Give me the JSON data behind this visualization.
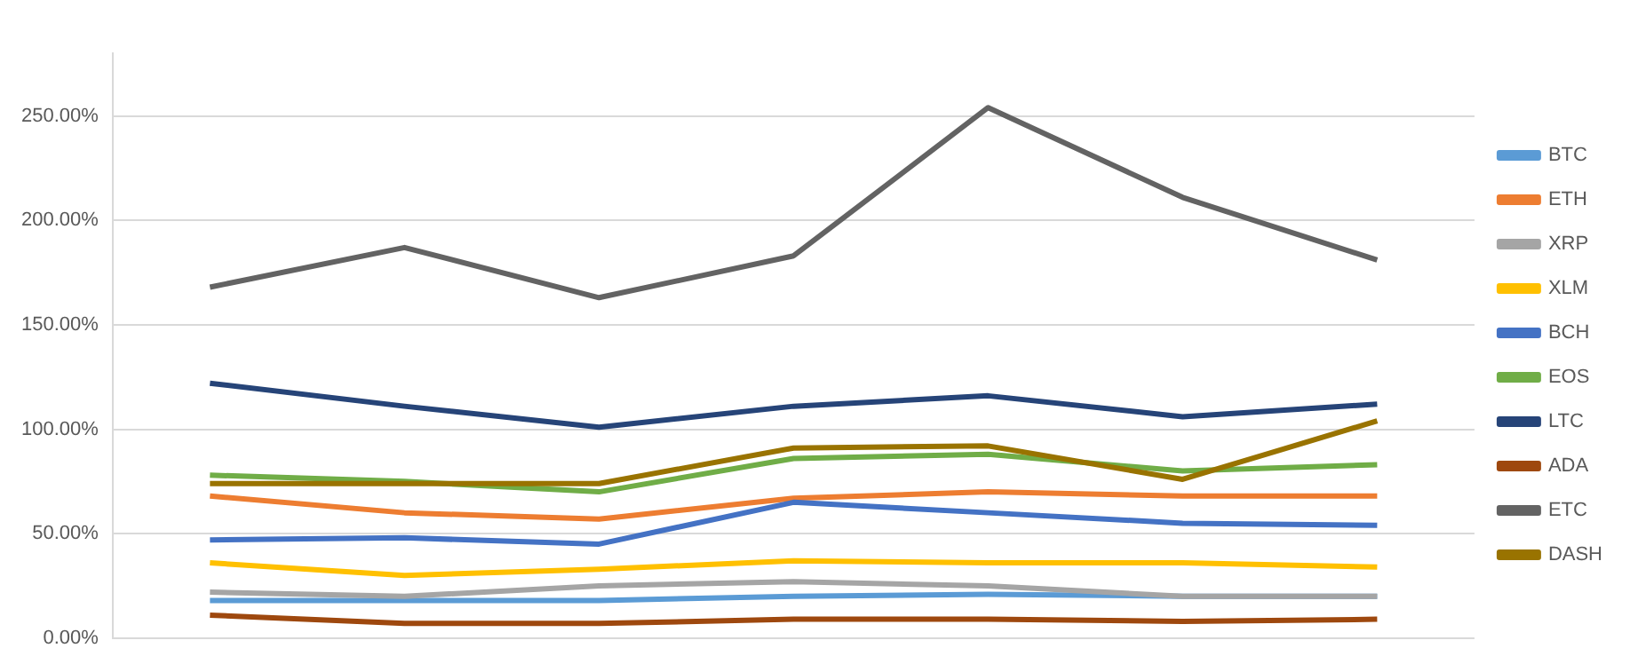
{
  "chart_data": {
    "type": "line",
    "categories": [
      null,
      null,
      null,
      null,
      null,
      null,
      null
    ],
    "ylim": [
      0,
      280
    ],
    "yticks": [
      {
        "value": 0,
        "label": "0.00%"
      },
      {
        "value": 50,
        "label": "50.00%"
      },
      {
        "value": 100,
        "label": "100.00%"
      },
      {
        "value": 150,
        "label": "150.00%"
      },
      {
        "value": 200,
        "label": "200.00%"
      },
      {
        "value": 250,
        "label": "250.00%"
      }
    ],
    "grid": "y",
    "legend": "right",
    "marker": "none",
    "line_style": "solid",
    "tick_labels": "y",
    "series": [
      {
        "name": "BTC",
        "color": "#5b9bd5",
        "values": [
          18,
          18,
          18,
          20,
          21,
          20,
          20
        ]
      },
      {
        "name": "ETH",
        "color": "#ed7d31",
        "values": [
          68,
          60,
          57,
          67,
          70,
          68,
          68
        ]
      },
      {
        "name": "XRP",
        "color": "#a5a5a5",
        "values": [
          22,
          20,
          25,
          27,
          25,
          20,
          20
        ]
      },
      {
        "name": "XLM",
        "color": "#ffc000",
        "values": [
          36,
          30,
          33,
          37,
          36,
          36,
          34
        ]
      },
      {
        "name": "BCH",
        "color": "#4472c4",
        "values": [
          47,
          48,
          45,
          65,
          60,
          55,
          54
        ]
      },
      {
        "name": "EOS",
        "color": "#70ad47",
        "values": [
          78,
          75,
          70,
          86,
          88,
          80,
          83
        ]
      },
      {
        "name": "LTC",
        "color": "#264478",
        "values": [
          122,
          111,
          101,
          111,
          116,
          106,
          112
        ]
      },
      {
        "name": "ADA",
        "color": "#9e480e",
        "values": [
          11,
          7,
          7,
          9,
          9,
          8,
          9
        ]
      },
      {
        "name": "ETC",
        "color": "#636363",
        "values": [
          168,
          187,
          163,
          183,
          254,
          211,
          181
        ]
      },
      {
        "name": "DASH",
        "color": "#997300",
        "values": [
          74,
          74,
          74,
          91,
          92,
          76,
          104
        ]
      }
    ]
  }
}
